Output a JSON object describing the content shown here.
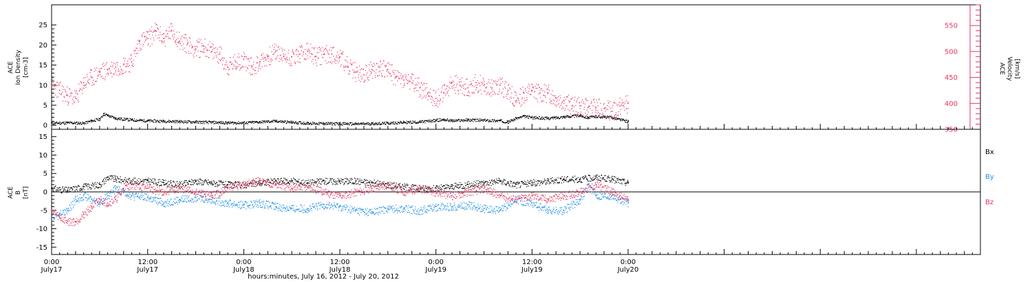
{
  "chart_data": [
    {
      "type": "scatter",
      "panel": "top",
      "x_unit": "hours since 0:00 July 17, 2012",
      "xlim": [
        0,
        116
      ],
      "x_ticks": [
        {
          "x": 0,
          "time": "0:00",
          "date": "July17"
        },
        {
          "x": 12,
          "time": "12:00",
          "date": "July17"
        },
        {
          "x": 24,
          "time": "0:00",
          "date": "July18"
        },
        {
          "x": 36,
          "time": "12:00",
          "date": "July18"
        },
        {
          "x": 48,
          "time": "0:00",
          "date": "July19"
        },
        {
          "x": 60,
          "time": "12:00",
          "date": "July19"
        },
        {
          "x": 72,
          "time": "0:00",
          "date": "July20"
        }
      ],
      "xlabel": "hours:minutes, July 16, 2012 - July 20, 2012",
      "left_axis": {
        "label_lines": [
          "ACE",
          "Ion Density",
          "[cm-3]"
        ],
        "ylim": [
          -1,
          30
        ],
        "ticks": [
          0,
          5,
          10,
          15,
          20,
          25
        ],
        "color": "#000000"
      },
      "right_axis": {
        "label_lines": [
          "ACE",
          "Velocity",
          "[km/s]"
        ],
        "ylim": [
          350,
          590
        ],
        "ticks": [
          350,
          400,
          450,
          500,
          550
        ],
        "color": "#e8325f"
      },
      "series": [
        {
          "axis": "left",
          "color": "#000000",
          "points": [
            [
              0,
              0.6
            ],
            [
              2,
              0.7
            ],
            [
              4,
              0.6
            ],
            [
              5,
              1.2
            ],
            [
              6,
              1.6
            ],
            [
              6.5,
              2.9
            ],
            [
              7,
              2.5
            ],
            [
              8,
              1.8
            ],
            [
              10,
              1.4
            ],
            [
              12,
              1.2
            ],
            [
              14,
              1.1
            ],
            [
              16,
              1.0
            ],
            [
              18,
              0.9
            ],
            [
              20,
              0.8
            ],
            [
              22,
              0.7
            ],
            [
              24,
              0.7
            ],
            [
              26,
              0.9
            ],
            [
              28,
              1.1
            ],
            [
              30,
              0.8
            ],
            [
              32,
              0.6
            ],
            [
              34,
              0.5
            ],
            [
              36,
              0.5
            ],
            [
              38,
              0.4
            ],
            [
              40,
              0.5
            ],
            [
              42,
              0.6
            ],
            [
              44,
              0.8
            ],
            [
              46,
              0.9
            ],
            [
              48,
              1.3
            ],
            [
              49,
              1.5
            ],
            [
              50,
              1.2
            ],
            [
              52,
              1.4
            ],
            [
              54,
              1.3
            ],
            [
              56,
              1.2
            ],
            [
              57,
              0.9
            ],
            [
              58,
              1.8
            ],
            [
              59,
              2.3
            ],
            [
              60,
              2.0
            ],
            [
              62,
              1.8
            ],
            [
              64,
              2.2
            ],
            [
              66,
              2.5
            ],
            [
              67,
              2.0
            ],
            [
              68,
              2.3
            ],
            [
              70,
              2.0
            ],
            [
              71,
              1.5
            ],
            [
              72,
              1.0
            ]
          ]
        },
        {
          "axis": "right",
          "color": "#e8325f",
          "points": [
            [
              0,
              435
            ],
            [
              1,
              425
            ],
            [
              2,
              415
            ],
            [
              3,
              410
            ],
            [
              4,
              440
            ],
            [
              5,
              450
            ],
            [
              6,
              460
            ],
            [
              7,
              465
            ],
            [
              8,
              470
            ],
            [
              9,
              475
            ],
            [
              10,
              480
            ],
            [
              11,
              520
            ],
            [
              12,
              525
            ],
            [
              13,
              540
            ],
            [
              14,
              525
            ],
            [
              15,
              540
            ],
            [
              16,
              520
            ],
            [
              17,
              515
            ],
            [
              18,
              505
            ],
            [
              19,
              510
            ],
            [
              20,
              500
            ],
            [
              21,
              495
            ],
            [
              22,
              470
            ],
            [
              23,
              480
            ],
            [
              24,
              485
            ],
            [
              25,
              470
            ],
            [
              26,
              480
            ],
            [
              27,
              490
            ],
            [
              28,
              500
            ],
            [
              29,
              490
            ],
            [
              30,
              490
            ],
            [
              31,
              495
            ],
            [
              32,
              500
            ],
            [
              33,
              490
            ],
            [
              34,
              495
            ],
            [
              35,
              495
            ],
            [
              36,
              490
            ],
            [
              37,
              470
            ],
            [
              38,
              460
            ],
            [
              39,
              455
            ],
            [
              40,
              465
            ],
            [
              41,
              470
            ],
            [
              42,
              465
            ],
            [
              43,
              450
            ],
            [
              44,
              445
            ],
            [
              45,
              440
            ],
            [
              46,
              430
            ],
            [
              47,
              420
            ],
            [
              48,
              410
            ],
            [
              49,
              420
            ],
            [
              50,
              440
            ],
            [
              51,
              435
            ],
            [
              52,
              430
            ],
            [
              53,
              440
            ],
            [
              54,
              435
            ],
            [
              55,
              430
            ],
            [
              56,
              435
            ],
            [
              57,
              425
            ],
            [
              58,
              405
            ],
            [
              59,
              420
            ],
            [
              60,
              425
            ],
            [
              61,
              420
            ],
            [
              62,
              420
            ],
            [
              63,
              410
            ],
            [
              64,
              405
            ],
            [
              65,
              395
            ],
            [
              66,
              395
            ],
            [
              67,
              392
            ],
            [
              68,
              392
            ],
            [
              69,
              390
            ],
            [
              70,
              385
            ],
            [
              71,
              395
            ],
            [
              72,
              400
            ]
          ]
        }
      ]
    },
    {
      "type": "scatter",
      "panel": "bottom",
      "x_unit": "hours since 0:00 July 17, 2012",
      "xlim": [
        0,
        116
      ],
      "left_axis": {
        "label_lines": [
          "ACE",
          "B",
          "[nT]"
        ],
        "ylim": [
          -17,
          17
        ],
        "ticks": [
          -15,
          -10,
          -5,
          0,
          5,
          10,
          15
        ],
        "color": "#000000"
      },
      "zero_line": true,
      "legend": [
        {
          "label": "Bx",
          "color": "#000000"
        },
        {
          "label": "By",
          "color": "#1f8fe6"
        },
        {
          "label": "Bz",
          "color": "#e8325f"
        }
      ],
      "series": [
        {
          "name": "Bx",
          "color": "#000000",
          "points": [
            [
              0,
              1
            ],
            [
              2,
              0.5
            ],
            [
              4,
              1.5
            ],
            [
              6,
              2
            ],
            [
              7,
              4
            ],
            [
              8,
              3.5
            ],
            [
              10,
              3
            ],
            [
              12,
              3
            ],
            [
              14,
              2.5
            ],
            [
              16,
              2
            ],
            [
              18,
              3
            ],
            [
              20,
              2.5
            ],
            [
              22,
              2
            ],
            [
              24,
              2
            ],
            [
              26,
              2.5
            ],
            [
              28,
              3
            ],
            [
              30,
              3
            ],
            [
              32,
              2.5
            ],
            [
              34,
              3
            ],
            [
              36,
              3
            ],
            [
              38,
              3
            ],
            [
              40,
              2.5
            ],
            [
              42,
              2
            ],
            [
              44,
              1.5
            ],
            [
              46,
              1
            ],
            [
              48,
              1
            ],
            [
              50,
              1.5
            ],
            [
              52,
              2
            ],
            [
              54,
              2.5
            ],
            [
              56,
              3
            ],
            [
              58,
              2
            ],
            [
              60,
              2.5
            ],
            [
              62,
              3
            ],
            [
              64,
              3.5
            ],
            [
              66,
              3.5
            ],
            [
              68,
              4
            ],
            [
              70,
              3.5
            ],
            [
              72,
              2.5
            ]
          ]
        },
        {
          "name": "By",
          "color": "#1f8fe6",
          "points": [
            [
              0,
              -7
            ],
            [
              1,
              -6
            ],
            [
              2,
              -5
            ],
            [
              3,
              -2
            ],
            [
              4,
              -1
            ],
            [
              5,
              -2
            ],
            [
              6,
              -3
            ],
            [
              7,
              -1
            ],
            [
              8,
              1
            ],
            [
              10,
              -1
            ],
            [
              12,
              -1.5
            ],
            [
              14,
              -3
            ],
            [
              16,
              -2
            ],
            [
              18,
              -1.5
            ],
            [
              20,
              -2
            ],
            [
              22,
              -3
            ],
            [
              24,
              -3.5
            ],
            [
              26,
              -3
            ],
            [
              28,
              -4
            ],
            [
              30,
              -4.5
            ],
            [
              32,
              -4.5
            ],
            [
              34,
              -3.5
            ],
            [
              36,
              -4
            ],
            [
              38,
              -5
            ],
            [
              40,
              -5.5
            ],
            [
              42,
              -4.5
            ],
            [
              44,
              -4.5
            ],
            [
              46,
              -5
            ],
            [
              48,
              -4
            ],
            [
              50,
              -4
            ],
            [
              52,
              -3.5
            ],
            [
              54,
              -4.5
            ],
            [
              56,
              -5
            ],
            [
              58,
              -2
            ],
            [
              60,
              -3
            ],
            [
              62,
              -5
            ],
            [
              64,
              -5
            ],
            [
              66,
              -2
            ],
            [
              67,
              2
            ],
            [
              68,
              -1
            ],
            [
              70,
              -1
            ],
            [
              71,
              -2
            ],
            [
              72,
              -3
            ]
          ]
        },
        {
          "name": "Bz",
          "color": "#e8325f",
          "points": [
            [
              0,
              -5
            ],
            [
              1,
              -7
            ],
            [
              2,
              -8
            ],
            [
              3,
              -8
            ],
            [
              4,
              -6
            ],
            [
              5,
              -4
            ],
            [
              6,
              -2
            ],
            [
              7,
              -3
            ],
            [
              8,
              -2
            ],
            [
              9,
              1
            ],
            [
              10,
              2
            ],
            [
              12,
              1
            ],
            [
              14,
              0
            ],
            [
              16,
              1
            ],
            [
              18,
              0
            ],
            [
              20,
              -1
            ],
            [
              22,
              1
            ],
            [
              24,
              2
            ],
            [
              26,
              3
            ],
            [
              28,
              2
            ],
            [
              30,
              1
            ],
            [
              32,
              1.5
            ],
            [
              34,
              0
            ],
            [
              36,
              -1
            ],
            [
              38,
              0
            ],
            [
              40,
              1
            ],
            [
              42,
              2
            ],
            [
              44,
              0
            ],
            [
              46,
              1
            ],
            [
              48,
              0
            ],
            [
              50,
              -1
            ],
            [
              52,
              0
            ],
            [
              54,
              1
            ],
            [
              56,
              -1
            ],
            [
              58,
              -2
            ],
            [
              60,
              -1
            ],
            [
              62,
              -2
            ],
            [
              64,
              -1
            ],
            [
              66,
              0
            ],
            [
              68,
              2
            ],
            [
              70,
              0
            ],
            [
              71,
              -1
            ],
            [
              72,
              -2
            ]
          ]
        }
      ]
    }
  ]
}
